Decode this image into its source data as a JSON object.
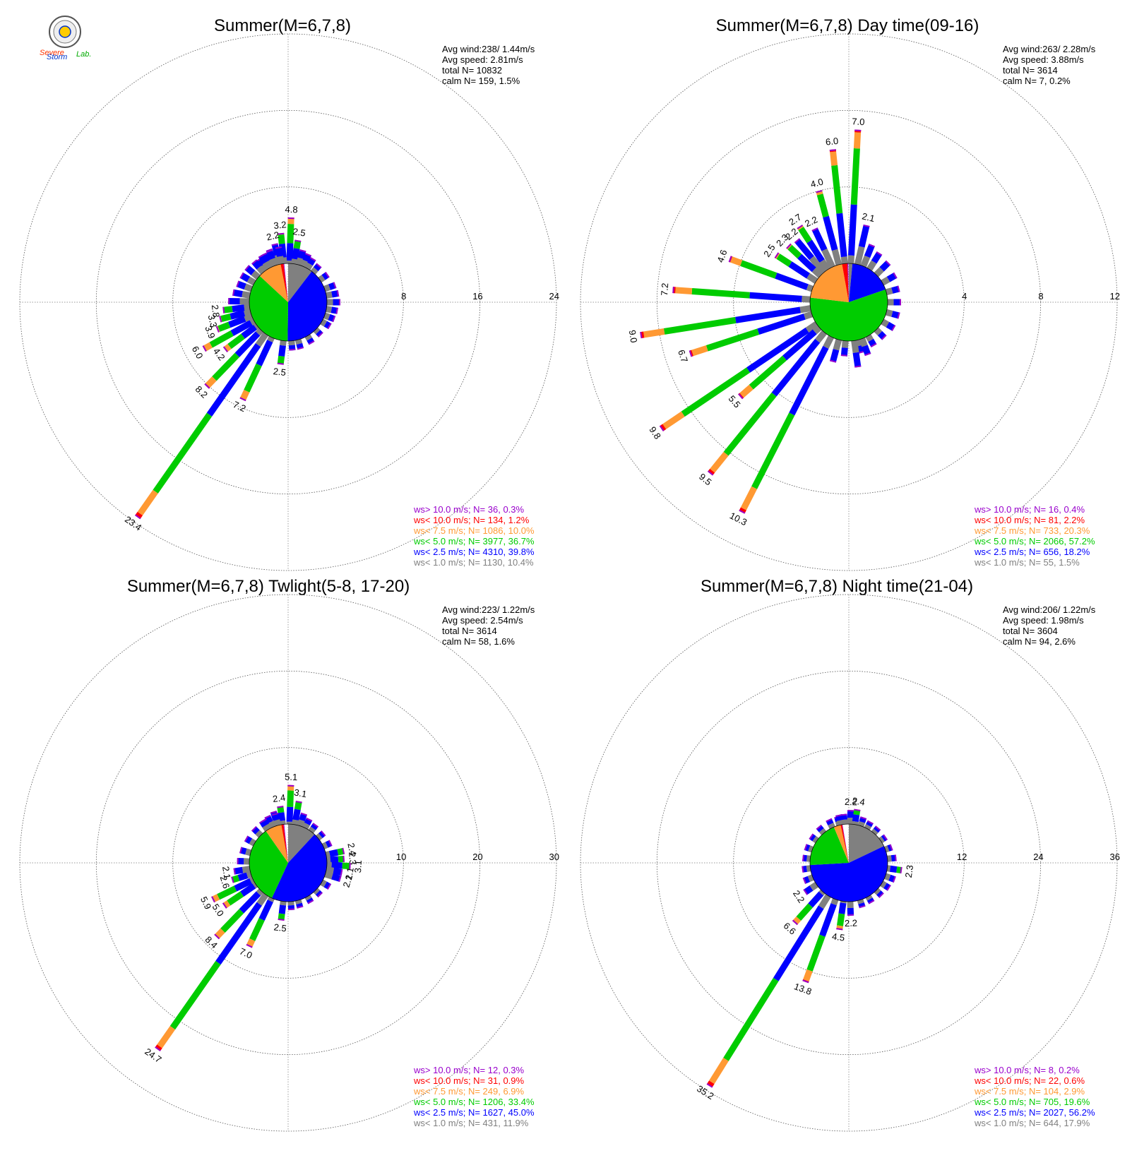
{
  "logo": {
    "text_a": "Severe",
    "text_b": "Storm",
    "text_c": "Lab."
  },
  "colors": {
    "gt10": "#9900cc",
    "lt10": "#ff0000",
    "lt7_5": "#ff9933",
    "lt5": "#00cc00",
    "lt2_5": "#0000ff",
    "lt1": "#808080"
  },
  "chart_data": [
    {
      "type": "wind-rose",
      "title": "Summer(M=6,7,8)",
      "stats": {
        "avg_wind": "Avg wind:238/ 1.44m/s",
        "avg_speed": "Avg speed: 2.81m/s",
        "total": "total N=     10832",
        "calm": "calm N=    159,   1.5%"
      },
      "rings": [
        8,
        16,
        24
      ],
      "pie": [
        10.4,
        39.8,
        36.7,
        10.0,
        1.2,
        0.3
      ],
      "bars": [
        {
          "dir": 2,
          "v": 4.8,
          "label": "4.8"
        },
        {
          "dir": -6,
          "v": 3.2,
          "label": "3.2"
        },
        {
          "dir": -13,
          "v": 2.2,
          "label": "2.2"
        },
        {
          "dir": 9,
          "v": 2.5,
          "label": "2.5"
        },
        {
          "dir": -20,
          "v": 1.8
        },
        {
          "dir": -27,
          "v": 1.6
        },
        {
          "dir": -34,
          "v": 1.4
        },
        {
          "dir": 16,
          "v": 1.6
        },
        {
          "dir": 23,
          "v": 1.4
        },
        {
          "dir": 30,
          "v": 1.2
        },
        {
          "dir": 40,
          "v": 1.0
        },
        {
          "dir": 55,
          "v": 1.0
        },
        {
          "dir": 70,
          "v": 1.2
        },
        {
          "dir": 80,
          "v": 1.3
        },
        {
          "dir": 90,
          "v": 1.4
        },
        {
          "dir": 100,
          "v": 1.2
        },
        {
          "dir": 110,
          "v": 1.1
        },
        {
          "dir": 120,
          "v": 1.0
        },
        {
          "dir": 135,
          "v": 0.8
        },
        {
          "dir": 150,
          "v": 0.9
        },
        {
          "dir": 165,
          "v": 1.0
        },
        {
          "dir": 175,
          "v": 1.0
        },
        {
          "dir": 187,
          "v": 2.5,
          "label": "2.5"
        },
        {
          "dir": 205,
          "v": 7.2,
          "label": "7.2"
        },
        {
          "dir": 215,
          "v": 23.4,
          "label": "23.4"
        },
        {
          "dir": 224,
          "v": 8.2,
          "label": "8.2"
        },
        {
          "dir": 233,
          "v": 4.2,
          "label": "4.2"
        },
        {
          "dir": 241,
          "v": 6.0,
          "label": "6.0"
        },
        {
          "dir": 249,
          "v": 3.9,
          "label": "3.9"
        },
        {
          "dir": 256,
          "v": 3.3,
          "label": "3.3"
        },
        {
          "dir": 263,
          "v": 2.8,
          "label": "2.8"
        },
        {
          "dir": 271,
          "v": 2.2
        },
        {
          "dir": 280,
          "v": 1.8
        },
        {
          "dir": 290,
          "v": 1.6
        },
        {
          "dir": 300,
          "v": 1.6
        },
        {
          "dir": 310,
          "v": 1.6
        },
        {
          "dir": 320,
          "v": 1.5
        },
        {
          "dir": 330,
          "v": 1.6
        },
        {
          "dir": 340,
          "v": 1.7
        },
        {
          "dir": 350,
          "v": 1.8
        }
      ],
      "legend": [
        {
          "text": "ws> 10.0 m/s; N=    36,  0.3%",
          "color": "#9900cc"
        },
        {
          "text": "ws< 10.0 m/s; N=   134,  1.2%",
          "color": "#ff0000"
        },
        {
          "text": "ws<  7.5 m/s; N=  1086, 10.0%",
          "color": "#ff9933"
        },
        {
          "text": "ws<  5.0 m/s; N=  3977, 36.7%",
          "color": "#00cc00"
        },
        {
          "text": "ws<  2.5 m/s; N=  4310, 39.8%",
          "color": "#0000ff"
        },
        {
          "text": "ws<  1.0 m/s; N=  1130, 10.4%",
          "color": "#808080"
        }
      ]
    },
    {
      "type": "wind-rose",
      "title": "Summer(M=6,7,8) Day time(09-16)",
      "stats": {
        "avg_wind": "Avg wind:263/ 2.28m/s",
        "avg_speed": "Avg speed: 3.88m/s",
        "total": "total N=      3614",
        "calm": "calm N=      7,   0.2%"
      },
      "rings": [
        4,
        8,
        12
      ],
      "pie": [
        1.5,
        18.2,
        57.2,
        20.3,
        2.2,
        0.4
      ],
      "bars": [
        {
          "dir": -6,
          "v": 6.0,
          "label": "6.0"
        },
        {
          "dir": 3,
          "v": 7.0,
          "label": "7.0"
        },
        {
          "dir": -15,
          "v": 4.0,
          "label": "4.0"
        },
        {
          "dir": 13,
          "v": 2.1,
          "label": "2.1"
        },
        {
          "dir": -25,
          "v": 2.2,
          "label": "2.2"
        },
        {
          "dir": -33,
          "v": 2.7,
          "label": "2.7"
        },
        {
          "dir": -40,
          "v": 2.2,
          "label": "2.2"
        },
        {
          "dir": -47,
          "v": 2.3,
          "label": "2.3"
        },
        {
          "dir": -57,
          "v": 2.5,
          "label": "2.5"
        },
        {
          "dir": -70,
          "v": 4.6,
          "label": "4.6"
        },
        {
          "dir": -86,
          "v": 7.2,
          "label": "7.2"
        },
        {
          "dir": -99,
          "v": 9.0,
          "label": "9.0"
        },
        {
          "dir": -108,
          "v": 6.7,
          "label": "6.7"
        },
        {
          "dir": -124,
          "v": 9.8,
          "label": "9.8"
        },
        {
          "dir": -131,
          "v": 5.5,
          "label": "5.5"
        },
        {
          "dir": -141,
          "v": 9.5,
          "label": "9.5"
        },
        {
          "dir": -153,
          "v": 10.3,
          "label": "10.3"
        },
        {
          "dir": 22,
          "v": 1.2
        },
        {
          "dir": 32,
          "v": 1.0
        },
        {
          "dir": 45,
          "v": 0.9
        },
        {
          "dir": 60,
          "v": 0.8
        },
        {
          "dir": 75,
          "v": 0.7
        },
        {
          "dir": 90,
          "v": 0.7
        },
        {
          "dir": 105,
          "v": 0.7
        },
        {
          "dir": 120,
          "v": 0.7
        },
        {
          "dir": 135,
          "v": 0.6
        },
        {
          "dir": 150,
          "v": 0.6
        },
        {
          "dir": 165,
          "v": 0.7
        },
        {
          "dir": 172,
          "v": 1.4
        },
        {
          "dir": 185,
          "v": 0.8
        },
        {
          "dir": 195,
          "v": 1.2
        },
        {
          "dir": 160,
          "v": 0.9
        }
      ],
      "legend": [
        {
          "text": "ws> 10.0 m/s; N=    16,  0.4%",
          "color": "#9900cc"
        },
        {
          "text": "ws< 10.0 m/s; N=    81,  2.2%",
          "color": "#ff0000"
        },
        {
          "text": "ws<  7.5 m/s; N=   733, 20.3%",
          "color": "#ff9933"
        },
        {
          "text": "ws<  5.0 m/s; N=  2066, 57.2%",
          "color": "#00cc00"
        },
        {
          "text": "ws<  2.5 m/s; N=   656, 18.2%",
          "color": "#0000ff"
        },
        {
          "text": "ws<  1.0 m/s; N=    55,  1.5%",
          "color": "#808080"
        }
      ]
    },
    {
      "type": "wind-rose",
      "title": "Summer(M=6,7,8) Twlight(5-8, 17-20)",
      "stats": {
        "avg_wind": "Avg wind:223/ 1.22m/s",
        "avg_speed": "Avg speed: 2.54m/s",
        "total": "total N=      3614",
        "calm": "calm N=     58,   1.6%"
      },
      "rings": [
        10,
        20,
        30
      ],
      "pie": [
        11.9,
        45.0,
        33.4,
        6.9,
        0.9,
        0.3
      ],
      "bars": [
        {
          "dir": 2,
          "v": 5.1,
          "label": "5.1"
        },
        {
          "dir": -8,
          "v": 2.4,
          "label": "2.4"
        },
        {
          "dir": 10,
          "v": 3.1,
          "label": "3.1"
        },
        {
          "dir": -16,
          "v": 1.9
        },
        {
          "dir": -24,
          "v": 1.6
        },
        {
          "dir": -32,
          "v": 1.4
        },
        {
          "dir": 18,
          "v": 1.7
        },
        {
          "dir": 26,
          "v": 1.3
        },
        {
          "dir": 36,
          "v": 1.1
        },
        {
          "dir": 50,
          "v": 1.0
        },
        {
          "dir": 65,
          "v": 1.1
        },
        {
          "dir": 78,
          "v": 2.4,
          "label": "2.4"
        },
        {
          "dir": 86,
          "v": 2.3,
          "label": "2.3"
        },
        {
          "dir": 93,
          "v": 3.1,
          "label": "3.1"
        },
        {
          "dir": 100,
          "v": 2.1,
          "label": "2.1"
        },
        {
          "dir": 107,
          "v": 2.1,
          "label": "2.1"
        },
        {
          "dir": 120,
          "v": 1.2
        },
        {
          "dir": 135,
          "v": 0.9
        },
        {
          "dir": 150,
          "v": 0.9
        },
        {
          "dir": 165,
          "v": 1.0
        },
        {
          "dir": 176,
          "v": 1.1
        },
        {
          "dir": 187,
          "v": 2.5,
          "label": "2.5"
        },
        {
          "dir": 205,
          "v": 7.0,
          "label": "7.0"
        },
        {
          "dir": 215,
          "v": 24.7,
          "label": "24.7"
        },
        {
          "dir": 224,
          "v": 8.4,
          "label": "8.4"
        },
        {
          "dir": 236,
          "v": 5.0,
          "label": "5.0"
        },
        {
          "dir": 244,
          "v": 5.9,
          "label": "5.9"
        },
        {
          "dir": 253,
          "v": 2.6,
          "label": "2.6"
        },
        {
          "dir": 261,
          "v": 2.1,
          "label": "2.1"
        },
        {
          "dir": 272,
          "v": 1.6
        },
        {
          "dir": 285,
          "v": 1.4
        },
        {
          "dir": 300,
          "v": 1.3
        },
        {
          "dir": 315,
          "v": 1.3
        },
        {
          "dir": 330,
          "v": 1.4
        },
        {
          "dir": 345,
          "v": 1.6
        }
      ],
      "legend": [
        {
          "text": "ws> 10.0 m/s; N=    12,  0.3%",
          "color": "#9900cc"
        },
        {
          "text": "ws< 10.0 m/s; N=    31,  0.9%",
          "color": "#ff0000"
        },
        {
          "text": "ws<  7.5 m/s; N=   249,  6.9%",
          "color": "#ff9933"
        },
        {
          "text": "ws<  5.0 m/s; N=  1206, 33.4%",
          "color": "#00cc00"
        },
        {
          "text": "ws<  2.5 m/s; N=  1627, 45.0%",
          "color": "#0000ff"
        },
        {
          "text": "ws<  1.0 m/s; N=   431, 11.9%",
          "color": "#808080"
        }
      ]
    },
    {
      "type": "wind-rose",
      "title": "Summer(M=6,7,8) Night time(21-04)",
      "stats": {
        "avg_wind": "Avg wind:206/ 1.22m/s",
        "avg_speed": "Avg speed: 1.98m/s",
        "total": "total N=      3604",
        "calm": "calm N=     94,   2.6%"
      },
      "rings": [
        12,
        24,
        36
      ],
      "pie": [
        17.9,
        56.2,
        19.6,
        2.9,
        0.6,
        0.2
      ],
      "bars": [
        {
          "dir": 2,
          "v": 2.2,
          "label": "2.2"
        },
        {
          "dir": 9,
          "v": 2.4,
          "label": "2.4"
        },
        {
          "dir": -6,
          "v": 1.6
        },
        {
          "dir": -14,
          "v": 1.4
        },
        {
          "dir": 18,
          "v": 1.4
        },
        {
          "dir": 28,
          "v": 1.2
        },
        {
          "dir": 40,
          "v": 1.1
        },
        {
          "dir": 55,
          "v": 1.0
        },
        {
          "dir": 70,
          "v": 1.1
        },
        {
          "dir": 84,
          "v": 1.4
        },
        {
          "dir": 98,
          "v": 2.3,
          "label": "2.3"
        },
        {
          "dir": 110,
          "v": 1.6
        },
        {
          "dir": 122,
          "v": 1.4
        },
        {
          "dir": 135,
          "v": 1.2
        },
        {
          "dir": 150,
          "v": 1.1
        },
        {
          "dir": 163,
          "v": 1.2
        },
        {
          "dir": 178,
          "v": 2.2,
          "label": "2.2"
        },
        {
          "dir": 188,
          "v": 4.5,
          "label": "4.5"
        },
        {
          "dir": 200,
          "v": 13.8,
          "label": "13.8"
        },
        {
          "dir": 212,
          "v": 35.2,
          "label": "35.2"
        },
        {
          "dir": 222,
          "v": 6.6,
          "label": "6.6"
        },
        {
          "dir": 236,
          "v": 2.2,
          "label": "2.2"
        },
        {
          "dir": 248,
          "v": 1.5
        },
        {
          "dir": 262,
          "v": 1.3
        },
        {
          "dir": 276,
          "v": 1.2
        },
        {
          "dir": 290,
          "v": 1.2
        },
        {
          "dir": 305,
          "v": 1.2
        },
        {
          "dir": 320,
          "v": 1.3
        },
        {
          "dir": 335,
          "v": 1.4
        },
        {
          "dir": 348,
          "v": 1.6
        }
      ],
      "legend": [
        {
          "text": "ws> 10.0 m/s; N=     8,  0.2%",
          "color": "#9900cc"
        },
        {
          "text": "ws< 10.0 m/s; N=    22,  0.6%",
          "color": "#ff0000"
        },
        {
          "text": "ws<  7.5 m/s; N=   104,  2.9%",
          "color": "#ff9933"
        },
        {
          "text": "ws<  5.0 m/s; N=   705, 19.6%",
          "color": "#00cc00"
        },
        {
          "text": "ws<  2.5 m/s; N=  2027, 56.2%",
          "color": "#0000ff"
        },
        {
          "text": "ws<  1.0 m/s; N=   644, 17.9%",
          "color": "#808080"
        }
      ]
    }
  ]
}
